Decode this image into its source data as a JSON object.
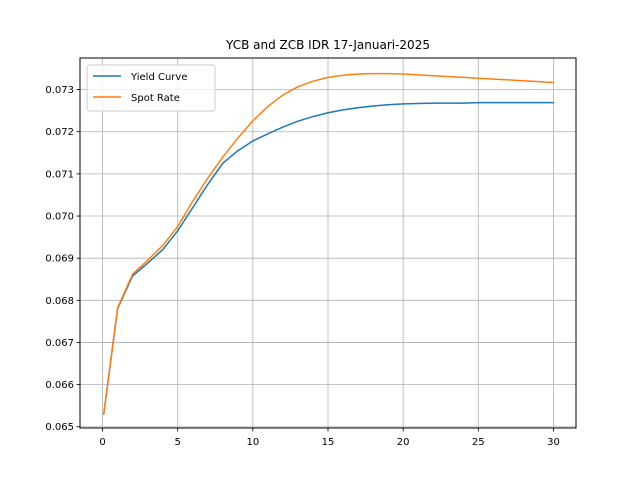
{
  "chart_data": {
    "type": "line",
    "title": "YCB and ZCB IDR 17-Januari-2025",
    "xlabel": "",
    "ylabel": "",
    "xlim": [
      -1.5,
      31.5
    ],
    "ylim": [
      0.06497,
      0.07375
    ],
    "xticks": [
      0,
      5,
      10,
      15,
      20,
      25,
      30
    ],
    "xtick_labels": [
      "0",
      "5",
      "10",
      "15",
      "20",
      "25",
      "30"
    ],
    "yticks": [
      0.065,
      0.066,
      0.067,
      0.068,
      0.069,
      0.07,
      0.071,
      0.072,
      0.073
    ],
    "ytick_labels": [
      "0.065",
      "0.066",
      "0.067",
      "0.068",
      "0.069",
      "0.070",
      "0.071",
      "0.072",
      "0.073"
    ],
    "grid": true,
    "legend_position": "upper-left",
    "x": [
      0.08,
      1,
      2,
      3,
      4,
      5,
      6,
      7,
      8,
      9,
      10,
      11,
      12,
      13,
      14,
      15,
      16,
      17,
      18,
      19,
      20,
      21,
      22,
      23,
      24,
      25,
      26,
      27,
      28,
      29,
      30
    ],
    "series": [
      {
        "name": "Yield Curve",
        "color": "#1f77b4",
        "values": [
          0.0653,
          0.0678,
          0.06858,
          0.06888,
          0.0692,
          0.06965,
          0.0702,
          0.07075,
          0.07125,
          0.07155,
          0.07178,
          0.07195,
          0.07211,
          0.07225,
          0.07236,
          0.07245,
          0.07252,
          0.07257,
          0.07261,
          0.07264,
          0.07266,
          0.07267,
          0.07268,
          0.07268,
          0.07268,
          0.07269,
          0.07269,
          0.07269,
          0.07269,
          0.07269,
          0.07269
        ]
      },
      {
        "name": "Spot Rate",
        "color": "#ff7f0e",
        "values": [
          0.0653,
          0.06782,
          0.06862,
          0.06895,
          0.0693,
          0.06975,
          0.07035,
          0.0709,
          0.0714,
          0.07185,
          0.07226,
          0.0726,
          0.07287,
          0.07307,
          0.0732,
          0.07329,
          0.07334,
          0.07337,
          0.07338,
          0.07338,
          0.07337,
          0.07335,
          0.07333,
          0.07331,
          0.07329,
          0.07327,
          0.07325,
          0.07323,
          0.07321,
          0.07319,
          0.07317
        ]
      }
    ]
  }
}
